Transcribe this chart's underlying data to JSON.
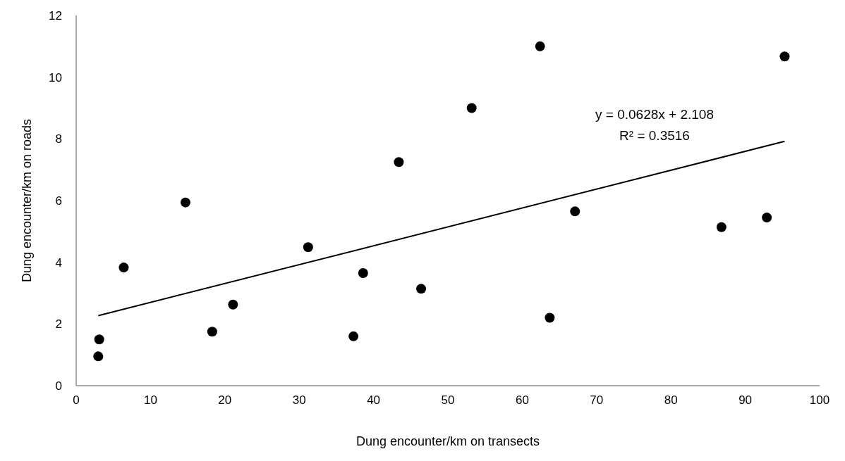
{
  "chart_data": {
    "type": "scatter",
    "xlabel": "Dung encounter/km on transects",
    "ylabel": "Dung encounter/km on roads",
    "xlim": [
      0,
      100
    ],
    "xticks": [
      0,
      10,
      20,
      30,
      40,
      50,
      60,
      70,
      80,
      90,
      100
    ],
    "ylim": [
      0,
      12
    ],
    "yticks": [
      0,
      2,
      4,
      6,
      8,
      10,
      12
    ],
    "grid": false,
    "legend": false,
    "marker": "circle",
    "series": [
      {
        "color": "#000000",
        "x": [
          2.97,
          3.1,
          6.4,
          14.7,
          18.3,
          21.1,
          31.2,
          37.3,
          38.6,
          43.4,
          46.4,
          53.2,
          62.4,
          63.7,
          67.1,
          86.8,
          92.9,
          95.3
        ],
        "values": [
          0.95,
          1.5,
          3.83,
          5.94,
          1.75,
          2.63,
          4.49,
          1.6,
          3.65,
          7.25,
          3.14,
          9.0,
          11.0,
          2.2,
          5.65,
          5.14,
          5.45,
          10.67
        ]
      },
      {
        "type": "line",
        "color": "#000000",
        "line_style": "solid",
        "marker": "none",
        "x": [
          2.97,
          95.3
        ],
        "values": [
          2.27,
          7.92
        ]
      }
    ],
    "annotations": [
      "y = 0.0628x + 2.108",
      "R² = 0.3516"
    ]
  }
}
